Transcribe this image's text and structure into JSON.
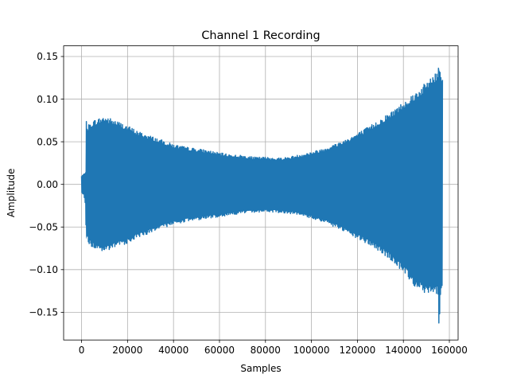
{
  "chart_data": {
    "type": "line",
    "title": "Channel 1 Recording",
    "xlabel": "Samples",
    "ylabel": "Amplitude",
    "xlim": [
      -7800,
      163800
    ],
    "ylim": [
      -0.1825,
      0.1625
    ],
    "xticks": [
      0,
      20000,
      40000,
      60000,
      80000,
      100000,
      120000,
      140000,
      160000
    ],
    "yticks": [
      -0.15,
      -0.1,
      -0.05,
      0.0,
      0.05,
      0.1,
      0.15
    ],
    "xtick_labels": [
      "0",
      "20000",
      "40000",
      "60000",
      "80000",
      "100000",
      "120000",
      "140000",
      "160000"
    ],
    "ytick_labels": [
      "−0.15",
      "−0.10",
      "−0.05",
      "0.00",
      "0.05",
      "0.10",
      "0.15"
    ],
    "grid": true,
    "legend": false,
    "series": [
      {
        "color": "#1f77b4",
        "description": "Dense oscillating audio waveform; values give the upper (max) and lower (min) amplitude envelope at sample positions",
        "x": [
          0,
          1000,
          1800,
          2000,
          2500,
          3000,
          5000,
          8000,
          10000,
          15000,
          20000,
          25000,
          30000,
          35000,
          40000,
          45000,
          50000,
          55000,
          60000,
          65000,
          70000,
          75000,
          80000,
          85000,
          90000,
          95000,
          100000,
          105000,
          110000,
          115000,
          120000,
          125000,
          130000,
          135000,
          140000,
          143000,
          145000,
          148000,
          150000,
          152000,
          154000,
          155000,
          155500,
          156000,
          156500,
          157000
        ],
        "envelope_max": [
          0.01,
          0.012,
          0.015,
          0.075,
          0.068,
          0.07,
          0.075,
          0.078,
          0.08,
          0.075,
          0.069,
          0.062,
          0.057,
          0.052,
          0.047,
          0.044,
          0.042,
          0.04,
          0.037,
          0.035,
          0.034,
          0.032,
          0.032,
          0.031,
          0.032,
          0.035,
          0.038,
          0.042,
          0.047,
          0.053,
          0.06,
          0.068,
          0.077,
          0.086,
          0.097,
          0.104,
          0.108,
          0.115,
          0.12,
          0.128,
          0.13,
          0.135,
          0.148,
          0.138,
          0.13,
          0.13
        ],
        "envelope_min": [
          -0.01,
          -0.012,
          -0.025,
          -0.07,
          -0.065,
          -0.07,
          -0.075,
          -0.078,
          -0.08,
          -0.074,
          -0.069,
          -0.062,
          -0.057,
          -0.052,
          -0.047,
          -0.044,
          -0.042,
          -0.04,
          -0.038,
          -0.036,
          -0.034,
          -0.033,
          -0.032,
          -0.033,
          -0.034,
          -0.036,
          -0.04,
          -0.044,
          -0.05,
          -0.057,
          -0.064,
          -0.071,
          -0.08,
          -0.09,
          -0.104,
          -0.113,
          -0.12,
          -0.125,
          -0.13,
          -0.125,
          -0.13,
          -0.13,
          -0.168,
          -0.14,
          -0.13,
          -0.115
        ]
      }
    ]
  }
}
